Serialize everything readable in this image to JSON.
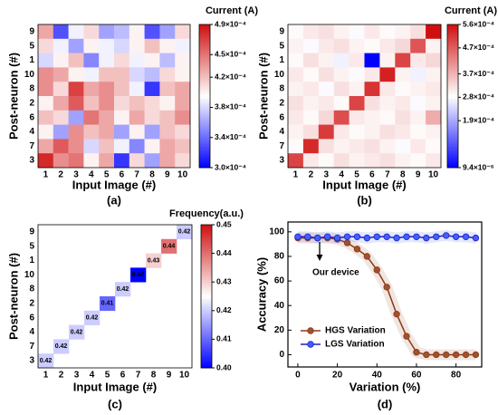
{
  "chart_data": [
    {
      "type": "heatmap",
      "panel_label": "(a)",
      "colorbar_title": "Current (A)",
      "xlabel": "Input Image (#)",
      "ylabel": "Post-neuron (#)",
      "x": [
        "1",
        "2",
        "3",
        "4",
        "5",
        "6",
        "7",
        "8",
        "9",
        "10"
      ],
      "y": [
        "9",
        "5",
        "1",
        "10",
        "8",
        "2",
        "6",
        "4",
        "7",
        "3"
      ],
      "z": [
        [
          0.00043,
          0.00033,
          0.00039,
          0.00041,
          0.00036,
          0.00037,
          0.0004,
          0.00033,
          0.00036,
          0.00041
        ],
        [
          0.00041,
          0.00039,
          0.00036,
          0.0004,
          0.00039,
          0.00038,
          0.0004,
          0.00042,
          0.0004,
          0.00039
        ],
        [
          0.00038,
          0.0004,
          0.00042,
          0.00035,
          0.00039,
          0.00041,
          0.00039,
          0.0004,
          0.00037,
          0.0004
        ],
        [
          0.00044,
          0.00043,
          0.0004,
          0.00039,
          0.00042,
          0.00042,
          0.00038,
          0.00037,
          0.00041,
          0.0004
        ],
        [
          0.00044,
          0.00041,
          0.00047,
          0.00043,
          0.00044,
          0.00042,
          0.00039,
          0.00032,
          0.00042,
          0.00043
        ],
        [
          0.0004,
          0.00043,
          0.00046,
          0.00042,
          0.00044,
          0.00041,
          0.00042,
          0.00041,
          0.0004,
          0.00043
        ],
        [
          0.00042,
          0.00041,
          0.00036,
          0.00045,
          0.00043,
          0.0004,
          0.00043,
          0.00041,
          0.00042,
          0.00044
        ],
        [
          0.0004,
          0.00036,
          0.00044,
          0.00042,
          0.00043,
          0.00036,
          0.0004,
          0.00036,
          0.00042,
          0.00041
        ],
        [
          0.00043,
          0.00046,
          0.00044,
          0.00038,
          0.00042,
          0.00039,
          0.00035,
          0.0004,
          0.00043,
          0.00042
        ],
        [
          0.00048,
          0.00044,
          0.00045,
          0.0004,
          0.00043,
          0.00032,
          0.00041,
          0.00036,
          0.00043,
          0.00041
        ]
      ],
      "zlim": [
        0.0003,
        0.00049
      ],
      "zticks": [
        {
          "value": 0.0003,
          "label": "3.0×10⁻⁴"
        },
        {
          "value": 0.00034,
          "label": "3.4×10⁻⁴"
        },
        {
          "value": 0.00038,
          "label": "3.8×10⁻⁴"
        },
        {
          "value": 0.00042,
          "label": "4.2×10⁻⁴"
        },
        {
          "value": 0.00045,
          "label": "4.5×10⁻⁴"
        },
        {
          "value": 0.00049,
          "label": "4.9×10⁻⁴"
        }
      ],
      "colormap": [
        "#0000ff",
        "#ffffff",
        "#d01010"
      ]
    },
    {
      "type": "heatmap",
      "panel_label": "(b)",
      "colorbar_title": "Current (A)",
      "xlabel": "Input Image (#)",
      "ylabel": "Post-neuron (#)",
      "x": [
        "1",
        "2",
        "3",
        "4",
        "5",
        "6",
        "7",
        "8",
        "9",
        "10"
      ],
      "y": [
        "9",
        "5",
        "1",
        "10",
        "8",
        "2",
        "6",
        "4",
        "7",
        "3"
      ],
      "z": [
        [
          0.00029,
          0.00031,
          0.00032,
          0.0003,
          0.00028,
          0.00031,
          0.00029,
          0.0003,
          0.00032,
          0.00056
        ],
        [
          0.0003,
          0.00028,
          0.00031,
          0.00032,
          0.0003,
          0.00029,
          0.00031,
          0.00033,
          0.00048,
          0.0003
        ],
        [
          0.00029,
          0.00032,
          0.0003,
          0.00027,
          0.00031,
          9.4e-06,
          0.0003,
          0.0005,
          0.00031,
          0.00033
        ],
        [
          0.00031,
          0.00029,
          0.00032,
          0.0003,
          0.00028,
          0.00031,
          0.00054,
          0.0003,
          0.00027,
          0.0003
        ],
        [
          0.0003,
          0.00031,
          0.00028,
          0.00032,
          0.0003,
          0.00052,
          0.00031,
          0.00029,
          0.0003,
          0.00031
        ],
        [
          0.00032,
          0.0003,
          0.00031,
          0.00029,
          0.0005,
          0.00032,
          0.0003,
          0.00031,
          0.00028,
          0.0003
        ],
        [
          0.00031,
          0.00029,
          0.00033,
          0.00049,
          0.00031,
          0.0003,
          0.00029,
          0.00032,
          0.0003,
          0.00038
        ],
        [
          0.0003,
          0.00032,
          0.00051,
          0.00031,
          0.00029,
          0.0003,
          0.00032,
          0.00031,
          0.00029,
          0.0003
        ],
        [
          0.00029,
          0.00053,
          0.00032,
          0.0003,
          0.00031,
          0.00032,
          0.0003,
          0.00028,
          0.00031,
          0.00029
        ],
        [
          0.0005,
          0.00031,
          0.00029,
          0.00032,
          0.0003,
          0.00031,
          0.00032,
          0.0003,
          0.00029,
          0.00031
        ]
      ],
      "zlim": [
        9.4e-06,
        0.00056
      ],
      "zticks": [
        {
          "value": 9.4e-06,
          "label": "9.4×10⁻⁶"
        },
        {
          "value": 0.00019,
          "label": "1.9×10⁻⁴"
        },
        {
          "value": 0.00028,
          "label": "2.8×10⁻⁴"
        },
        {
          "value": 0.00037,
          "label": "3.7×10⁻⁴"
        },
        {
          "value": 0.00047,
          "label": "4.7×10⁻⁴"
        },
        {
          "value": 0.00056,
          "label": "5.6×10⁻⁴"
        }
      ],
      "colormap": [
        "#0000ff",
        "#ffffff",
        "#d01010"
      ]
    },
    {
      "type": "heatmap",
      "panel_label": "(c)",
      "colorbar_title": "Frequency(a.u.)",
      "xlabel": "Input Image (#)",
      "ylabel": "Post-neuron (#)",
      "x": [
        "1",
        "2",
        "3",
        "4",
        "5",
        "6",
        "7",
        "8",
        "9",
        "10"
      ],
      "y": [
        "9",
        "5",
        "1",
        "10",
        "8",
        "2",
        "6",
        "4",
        "7",
        "3"
      ],
      "z": [
        [
          null,
          null,
          null,
          null,
          null,
          null,
          null,
          null,
          null,
          0.42
        ],
        [
          null,
          null,
          null,
          null,
          null,
          null,
          null,
          null,
          0.44,
          null
        ],
        [
          null,
          null,
          null,
          null,
          null,
          null,
          null,
          0.43,
          null,
          null
        ],
        [
          null,
          null,
          null,
          null,
          null,
          null,
          0.4,
          null,
          null,
          null
        ],
        [
          null,
          null,
          null,
          null,
          null,
          0.42,
          null,
          null,
          null,
          null
        ],
        [
          null,
          null,
          null,
          null,
          0.41,
          null,
          null,
          null,
          null,
          null
        ],
        [
          null,
          null,
          null,
          0.42,
          null,
          null,
          null,
          null,
          null,
          null
        ],
        [
          null,
          null,
          0.42,
          null,
          null,
          null,
          null,
          null,
          null,
          null
        ],
        [
          null,
          0.42,
          null,
          null,
          null,
          null,
          null,
          null,
          null,
          null
        ],
        [
          0.42,
          null,
          null,
          null,
          null,
          null,
          null,
          null,
          null,
          null
        ]
      ],
      "value_labels": [
        [
          null,
          null,
          null,
          null,
          null,
          null,
          null,
          null,
          null,
          "0.42"
        ],
        [
          null,
          null,
          null,
          null,
          null,
          null,
          null,
          null,
          "0.44",
          null
        ],
        [
          null,
          null,
          null,
          null,
          null,
          null,
          null,
          "0.43",
          null,
          null
        ],
        [
          null,
          null,
          null,
          null,
          null,
          null,
          "0.40",
          null,
          null,
          null
        ],
        [
          null,
          null,
          null,
          null,
          null,
          "0.42",
          null,
          null,
          null,
          null
        ],
        [
          null,
          null,
          null,
          null,
          "0.41",
          null,
          null,
          null,
          null,
          null
        ],
        [
          null,
          null,
          null,
          "0.42",
          null,
          null,
          null,
          null,
          null,
          null
        ],
        [
          null,
          null,
          "0.42",
          null,
          null,
          null,
          null,
          null,
          null,
          null
        ],
        [
          null,
          "0.42",
          null,
          null,
          null,
          null,
          null,
          null,
          null,
          null
        ],
        [
          "0.42",
          null,
          null,
          null,
          null,
          null,
          null,
          null,
          null,
          null
        ]
      ],
      "zlim": [
        0.4,
        0.45
      ],
      "zticks": [
        {
          "value": 0.4,
          "label": "0.40"
        },
        0.41,
        0.42,
        0.43,
        0.44,
        0.45
      ],
      "colormap": [
        "#0000ff",
        "#ffffff",
        "#d01010"
      ]
    },
    {
      "type": "line",
      "panel_label": "(d)",
      "xlabel": "Variation (%)",
      "ylabel": "Accuracy (%)",
      "x": [
        0,
        5,
        10,
        15,
        20,
        25,
        30,
        35,
        40,
        45,
        50,
        55,
        60,
        65,
        70,
        75,
        80,
        85,
        90
      ],
      "series": [
        {
          "name": "HGS Variation",
          "color": "#8b3a1a",
          "marker_color": "#a0522d",
          "values": [
            95,
            95,
            95,
            95,
            94,
            91,
            86,
            80,
            69,
            55,
            33,
            15,
            2,
            0,
            0,
            0,
            0,
            0,
            0
          ]
        },
        {
          "name": "LGS Variation",
          "color": "#2020c0",
          "marker_color": "#4060ff",
          "values": [
            96,
            96,
            95,
            96,
            95,
            96,
            96,
            95,
            96,
            96,
            95,
            96,
            96,
            95,
            96,
            97,
            96,
            96,
            95
          ]
        }
      ],
      "annotations": [
        {
          "text": "Our device"
        }
      ],
      "xlim": [
        -5,
        93
      ],
      "ylim": [
        -10,
        108
      ],
      "xticks": [
        0,
        20,
        40,
        60,
        80
      ],
      "yticks": [
        0,
        20,
        40,
        60,
        80,
        100
      ],
      "legend": "lower left"
    }
  ]
}
